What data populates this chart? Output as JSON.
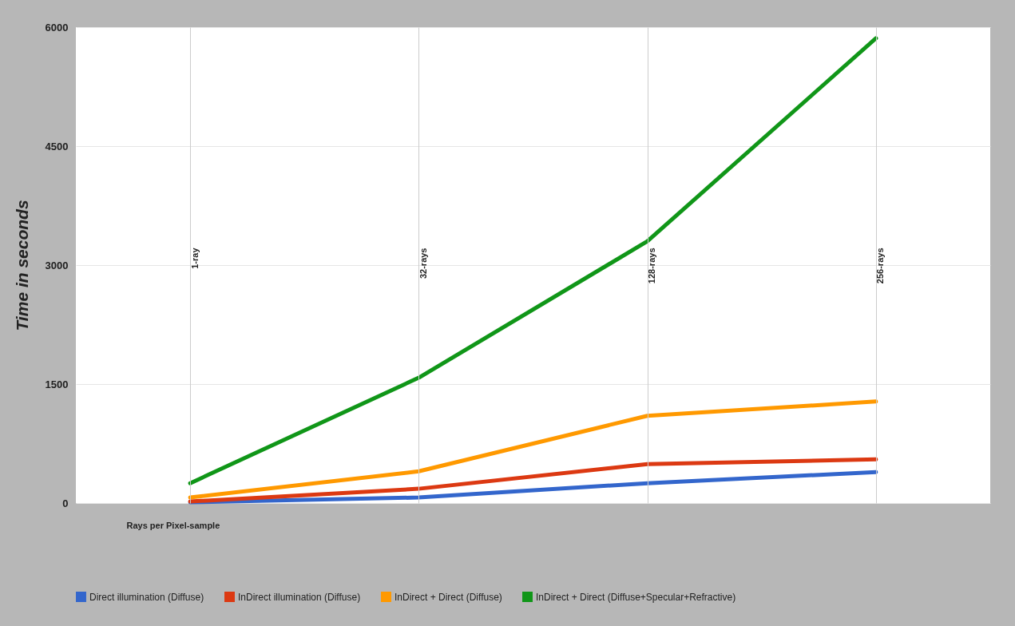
{
  "chart_data": {
    "type": "line",
    "xlabel": "Rays per Pixel-sample",
    "ylabel": "Time in seconds",
    "categories": [
      "1-ray",
      "32-rays",
      "128-rays",
      "256-rays"
    ],
    "series": [
      {
        "name": "Direct illumination (Diffuse)",
        "color": "#3366cc",
        "values": [
          10,
          70,
          250,
          390
        ]
      },
      {
        "name": "InDirect illumination (Diffuse)",
        "color": "#dc3912",
        "values": [
          20,
          180,
          490,
          550
        ]
      },
      {
        "name": "InDirect + Direct (Diffuse)",
        "color": "#ff9900",
        "values": [
          70,
          400,
          1100,
          1280
        ]
      },
      {
        "name": "InDirect + Direct (Diffuse+Specular+Refractive)",
        "color": "#109618",
        "values": [
          250,
          1580,
          3300,
          5860
        ]
      }
    ],
    "ylim": [
      0,
      6000
    ],
    "yticks": [
      0,
      1500,
      3000,
      4500,
      6000
    ],
    "grid": true,
    "legend": "bottom"
  }
}
